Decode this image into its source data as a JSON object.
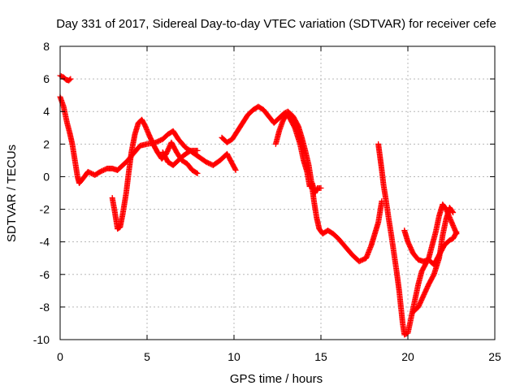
{
  "chart_data": {
    "type": "scatter",
    "title": "Day 331 of 2017, Sidereal Day-to-day VTEC variation (SDTVAR) for receiver cefe",
    "xlabel": "GPS time / hours",
    "ylabel": "SDTVAR / TECUs",
    "xlim": [
      0,
      25
    ],
    "ylim": [
      -10,
      8
    ],
    "xticks": [
      0,
      5,
      10,
      15,
      20,
      25
    ],
    "yticks": [
      -10,
      -8,
      -6,
      -4,
      -2,
      0,
      2,
      4,
      6,
      8
    ],
    "xtick_labels": [
      "0",
      "5",
      "10",
      "15",
      "20",
      "25"
    ],
    "ytick_labels": [
      "-10",
      "-8",
      "-6",
      "-4",
      "-2",
      "0",
      "2",
      "4",
      "6",
      "8"
    ],
    "grid": true,
    "marker": "plus",
    "color": "#ff0000",
    "segments": [
      [
        [
          0.0,
          6.2
        ],
        [
          0.2,
          6.1
        ],
        [
          0.35,
          5.95
        ],
        [
          0.5,
          5.9
        ],
        [
          0.6,
          6.0
        ]
      ],
      [
        [
          0.0,
          4.9
        ],
        [
          0.2,
          4.3
        ],
        [
          0.4,
          3.3
        ],
        [
          0.55,
          2.7
        ],
        [
          0.7,
          2.0
        ],
        [
          0.85,
          1.0
        ],
        [
          1.0,
          0.0
        ],
        [
          1.1,
          -0.4
        ],
        [
          1.4,
          0.0
        ],
        [
          1.6,
          0.3
        ],
        [
          2.0,
          0.1
        ],
        [
          2.3,
          0.3
        ],
        [
          2.7,
          0.5
        ],
        [
          3.0,
          0.5
        ],
        [
          3.3,
          0.4
        ],
        [
          3.6,
          0.7
        ],
        [
          3.9,
          1.0
        ],
        [
          4.2,
          1.4
        ],
        [
          4.6,
          1.9
        ],
        [
          5.0,
          2.0
        ],
        [
          5.5,
          2.1
        ],
        [
          5.9,
          2.3
        ],
        [
          6.2,
          2.6
        ],
        [
          6.5,
          2.8
        ],
        [
          6.8,
          2.3
        ],
        [
          7.2,
          1.8
        ],
        [
          7.6,
          1.5
        ],
        [
          8.0,
          1.2
        ],
        [
          8.4,
          0.9
        ],
        [
          8.8,
          0.7
        ],
        [
          9.2,
          1.0
        ],
        [
          9.6,
          1.4
        ],
        [
          9.9,
          0.8
        ],
        [
          10.1,
          0.4
        ]
      ],
      [
        [
          3.0,
          -1.3
        ],
        [
          3.15,
          -2.2
        ],
        [
          3.3,
          -3.2
        ],
        [
          3.45,
          -3.1
        ],
        [
          3.6,
          -2.3
        ],
        [
          3.8,
          -1.0
        ],
        [
          3.95,
          0.3
        ],
        [
          4.1,
          1.5
        ],
        [
          4.3,
          2.6
        ],
        [
          4.5,
          3.3
        ],
        [
          4.7,
          3.5
        ],
        [
          4.9,
          3.1
        ],
        [
          5.1,
          2.6
        ],
        [
          5.35,
          2.0
        ],
        [
          5.6,
          1.5
        ],
        [
          5.85,
          1.1
        ],
        [
          6.1,
          1.4
        ],
        [
          6.4,
          2.1
        ],
        [
          6.7,
          1.5
        ],
        [
          7.0,
          1.0
        ],
        [
          7.3,
          0.8
        ],
        [
          7.6,
          0.4
        ],
        [
          7.9,
          0.2
        ]
      ],
      [
        [
          5.9,
          1.5
        ],
        [
          6.2,
          0.9
        ],
        [
          6.5,
          0.7
        ],
        [
          6.8,
          1.0
        ],
        [
          7.1,
          1.3
        ],
        [
          7.5,
          1.6
        ],
        [
          7.9,
          1.6
        ]
      ],
      [
        [
          9.3,
          2.4
        ],
        [
          9.6,
          2.1
        ],
        [
          9.9,
          2.3
        ],
        [
          10.2,
          2.8
        ],
        [
          10.5,
          3.3
        ],
        [
          10.8,
          3.8
        ],
        [
          11.1,
          4.1
        ],
        [
          11.4,
          4.3
        ],
        [
          11.7,
          4.1
        ],
        [
          12.0,
          3.7
        ],
        [
          12.3,
          3.3
        ],
        [
          12.6,
          3.6
        ],
        [
          12.9,
          3.9
        ],
        [
          13.1,
          4.0
        ],
        [
          13.4,
          3.7
        ],
        [
          13.7,
          3.1
        ],
        [
          13.9,
          2.4
        ],
        [
          14.1,
          1.6
        ],
        [
          14.3,
          0.7
        ],
        [
          14.45,
          -0.3
        ],
        [
          14.6,
          -1.5
        ],
        [
          14.75,
          -2.5
        ],
        [
          14.9,
          -3.2
        ],
        [
          15.1,
          -3.5
        ],
        [
          15.4,
          -3.3
        ],
        [
          15.7,
          -3.5
        ],
        [
          16.0,
          -3.8
        ],
        [
          16.4,
          -4.3
        ],
        [
          16.8,
          -4.8
        ],
        [
          17.2,
          -5.2
        ],
        [
          17.6,
          -5.0
        ],
        [
          17.9,
          -4.2
        ],
        [
          18.1,
          -3.5
        ],
        [
          18.3,
          -2.8
        ],
        [
          18.5,
          -1.5
        ]
      ],
      [
        [
          12.4,
          2.0
        ],
        [
          12.6,
          2.8
        ],
        [
          12.8,
          3.4
        ],
        [
          13.0,
          3.8
        ],
        [
          13.2,
          3.6
        ],
        [
          13.5,
          3.0
        ],
        [
          13.8,
          2.0
        ],
        [
          14.0,
          1.0
        ],
        [
          14.2,
          0.3
        ],
        [
          14.35,
          -0.6
        ],
        [
          14.5,
          -0.4
        ],
        [
          14.65,
          -1.0
        ],
        [
          14.8,
          -0.7
        ],
        [
          15.0,
          -0.7
        ]
      ],
      [
        [
          18.3,
          2.0
        ],
        [
          18.4,
          1.2
        ],
        [
          18.5,
          0.4
        ],
        [
          18.6,
          -0.5
        ],
        [
          18.75,
          -1.5
        ],
        [
          18.9,
          -2.6
        ],
        [
          19.05,
          -3.6
        ],
        [
          19.2,
          -4.7
        ],
        [
          19.35,
          -5.8
        ],
        [
          19.5,
          -7.0
        ],
        [
          19.6,
          -8.0
        ],
        [
          19.7,
          -9.0
        ],
        [
          19.8,
          -9.7
        ],
        [
          20.0,
          -9.6
        ],
        [
          20.2,
          -8.6
        ],
        [
          20.4,
          -7.6
        ],
        [
          20.6,
          -6.6
        ],
        [
          20.8,
          -5.8
        ],
        [
          21.0,
          -5.4
        ],
        [
          21.2,
          -5.0
        ],
        [
          21.4,
          -4.2
        ],
        [
          21.6,
          -3.4
        ],
        [
          21.8,
          -2.4
        ],
        [
          22.0,
          -1.7
        ],
        [
          22.2,
          -2.0
        ],
        [
          22.4,
          -2.5
        ],
        [
          22.6,
          -3.0
        ],
        [
          22.8,
          -3.5
        ]
      ],
      [
        [
          19.8,
          -3.3
        ],
        [
          20.0,
          -4.0
        ],
        [
          20.3,
          -4.7
        ],
        [
          20.6,
          -5.1
        ],
        [
          20.9,
          -5.2
        ],
        [
          21.2,
          -5.1
        ],
        [
          21.5,
          -5.4
        ],
        [
          21.7,
          -5.0
        ],
        [
          21.9,
          -4.6
        ],
        [
          22.1,
          -4.2
        ],
        [
          22.4,
          -3.9
        ],
        [
          22.6,
          -3.8
        ],
        [
          22.8,
          -3.4
        ]
      ],
      [
        [
          20.3,
          -8.3
        ],
        [
          20.6,
          -8.0
        ],
        [
          20.9,
          -7.3
        ],
        [
          21.2,
          -6.6
        ],
        [
          21.5,
          -6.0
        ],
        [
          21.8,
          -5.0
        ],
        [
          22.0,
          -3.6
        ],
        [
          22.2,
          -2.6
        ],
        [
          22.4,
          -1.9
        ],
        [
          22.6,
          -2.2
        ]
      ]
    ]
  }
}
